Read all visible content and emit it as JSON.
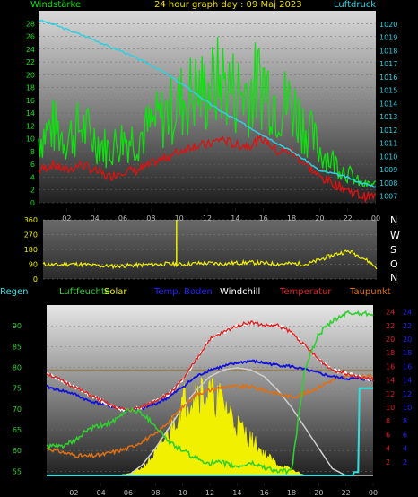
{
  "header": {
    "title": "24 hour graph day : 09 Maj 2023",
    "left_label": "Windstärke",
    "right_label": "Luftdruck"
  },
  "legend2": {
    "N": "N",
    "W": "W",
    "S": "S",
    "O": "O"
  },
  "legend3": {
    "regen": "Regen",
    "luftfeuchte": "Luftfeuchte",
    "solar": "Solar",
    "temp_boden": "Temp. Boden",
    "windchill": "Windchill",
    "temperatur": "Temperatur",
    "taupunkt": "Taupunkt"
  },
  "colors": {
    "wind_avg": "#e01010",
    "wind_gust": "#10e010",
    "pressure": "#30d0e0",
    "direction": "#f0f000",
    "temp": "#e02020",
    "dew": "#e07010",
    "soil": "#1010e0",
    "humidity": "#30d030",
    "solar": "#f0f000",
    "rain": "#30e0e0",
    "windchill": "#ffffff"
  },
  "x_ticks": [
    "02",
    "04",
    "06",
    "08",
    "10",
    "12",
    "14",
    "16",
    "18",
    "20",
    "22",
    "00"
  ],
  "chart_data": [
    {
      "type": "line",
      "title": "24 hour graph day : 09 Maj 2023",
      "ylabel_left": "Windstärke",
      "ylabel_right": "Luftdruck",
      "ylim_left": [
        0,
        30
      ],
      "yticks_left": [
        "0",
        "2",
        "4",
        "6",
        "8",
        "10",
        "12",
        "14",
        "16",
        "18",
        "20",
        "22",
        "24",
        "26",
        "28"
      ],
      "ylim_right": [
        1006.5,
        1021
      ],
      "yticks_right": [
        "1007",
        "1008",
        "1009",
        "1010",
        "1011",
        "1012",
        "1013",
        "1014",
        "1015",
        "1016",
        "1017",
        "1018",
        "1019",
        "1020"
      ],
      "x": [
        0,
        1,
        2,
        3,
        4,
        5,
        6,
        7,
        8,
        9,
        10,
        11,
        12,
        13,
        14,
        15,
        16,
        17,
        18,
        19,
        20,
        21,
        22,
        23,
        24
      ],
      "series": [
        {
          "name": "Windstärke",
          "axis": "left",
          "values": [
            5,
            6,
            5,
            6,
            5,
            4,
            5,
            5,
            6,
            7,
            8,
            9,
            9,
            10,
            9,
            9,
            10,
            8,
            8,
            6,
            4,
            3,
            2,
            1,
            1
          ]
        },
        {
          "name": "Luftdruck",
          "axis": "right",
          "values": [
            1020.3,
            1020.0,
            1019.6,
            1019.2,
            1018.8,
            1018.3,
            1017.9,
            1017.4,
            1016.9,
            1016.3,
            1015.6,
            1014.9,
            1014.1,
            1013.4,
            1012.8,
            1012.2,
            1011.6,
            1011.0,
            1010.4,
            1009.7,
            1008.9,
            1008.7,
            1008.4,
            1008.0,
            1007.7
          ]
        }
      ]
    },
    {
      "type": "line",
      "ylim": [
        0,
        360
      ],
      "yticks": [
        "0",
        "90",
        "180",
        "270",
        "360"
      ],
      "x": [
        0,
        1,
        2,
        3,
        4,
        5,
        6,
        7,
        8,
        9,
        10,
        11,
        12,
        13,
        14,
        15,
        16,
        17,
        18,
        19,
        20,
        21,
        22,
        23,
        24
      ],
      "series": [
        {
          "name": "direction",
          "values": [
            90,
            85,
            92,
            88,
            80,
            78,
            82,
            85,
            90,
            92,
            88,
            95,
            96,
            92,
            98,
            100,
            95,
            92,
            94,
            90,
            120,
            150,
            170,
            130,
            70
          ]
        }
      ]
    },
    {
      "type": "line",
      "yticks_left": [
        "55",
        "60",
        "65",
        "70",
        "75",
        "80",
        "85",
        "90"
      ],
      "ylim_left": [
        54,
        95
      ],
      "yticks_right_red": [
        "2",
        "4",
        "6",
        "8",
        "10",
        "12",
        "14",
        "16",
        "18",
        "20",
        "22",
        "24"
      ],
      "yticks_right_blue": [
        "2",
        "4",
        "6",
        "8",
        "10",
        "12",
        "14",
        "16",
        "18",
        "20",
        "22",
        "24"
      ],
      "ylim_right": [
        0,
        25
      ],
      "x": [
        0,
        1,
        2,
        3,
        4,
        5,
        6,
        7,
        8,
        9,
        10,
        11,
        12,
        13,
        14,
        15,
        16,
        17,
        18,
        19,
        20,
        21,
        22,
        23,
        24
      ],
      "series": [
        {
          "name": "Temperatur",
          "values": [
            15,
            14,
            13,
            12,
            11,
            10,
            9.5,
            10,
            11,
            12,
            14,
            17,
            20,
            21,
            22,
            22.5,
            22,
            22,
            21,
            19,
            17,
            15.5,
            15,
            14.5,
            14
          ]
        },
        {
          "name": "Windchill",
          "values": [
            15,
            14,
            13,
            12,
            11,
            10,
            9.5,
            10,
            11,
            12,
            14,
            17,
            20,
            21,
            22,
            22.5,
            22,
            22,
            21,
            19,
            17,
            15.5,
            15,
            14.5,
            14
          ]
        },
        {
          "name": "Temp. Boden",
          "values": [
            13,
            12.5,
            12,
            11,
            10.5,
            10,
            9.5,
            9.8,
            10.5,
            11.5,
            13,
            14.5,
            15.5,
            16,
            16.5,
            16.8,
            16.5,
            16.2,
            16,
            15.5,
            15,
            14.5,
            14.2,
            14.2,
            14
          ]
        },
        {
          "name": "Taupunkt",
          "values": [
            4,
            3.5,
            3,
            2.8,
            3,
            3.5,
            4,
            5,
            6,
            8,
            10,
            12,
            12.5,
            13,
            13,
            13,
            12.5,
            12,
            11.5,
            12,
            13,
            14,
            14.5,
            14.5,
            14.5
          ]
        },
        {
          "name": "Luftfeuchte",
          "values": [
            61,
            61,
            62,
            65,
            66,
            67,
            70,
            69,
            66,
            62,
            60,
            58,
            57,
            57,
            56,
            57,
            56,
            55,
            55,
            80,
            88,
            91,
            93,
            93,
            93
          ]
        },
        {
          "name": "Solar",
          "values": [
            0,
            0,
            0,
            0,
            0,
            0,
            0.2,
            1,
            3,
            6,
            10,
            12,
            11,
            10,
            7,
            5,
            3,
            1.5,
            0.8,
            0,
            0,
            0,
            0,
            0,
            0
          ]
        },
        {
          "name": "Solar (theoretical)",
          "values": [
            0,
            0,
            0,
            0,
            0,
            0,
            0,
            1.5,
            4,
            7,
            10,
            12.5,
            14.5,
            15.5,
            15.8,
            15.5,
            14.5,
            12.5,
            10,
            7,
            4,
            1,
            0,
            0,
            0
          ]
        },
        {
          "name": "Regen",
          "values": [
            0,
            0,
            0,
            0,
            0,
            0,
            0,
            0,
            0,
            0,
            0,
            0,
            0,
            0,
            0,
            0,
            0,
            0,
            0,
            0,
            0,
            0,
            0.5,
            12.8,
            12.8
          ]
        }
      ]
    }
  ]
}
